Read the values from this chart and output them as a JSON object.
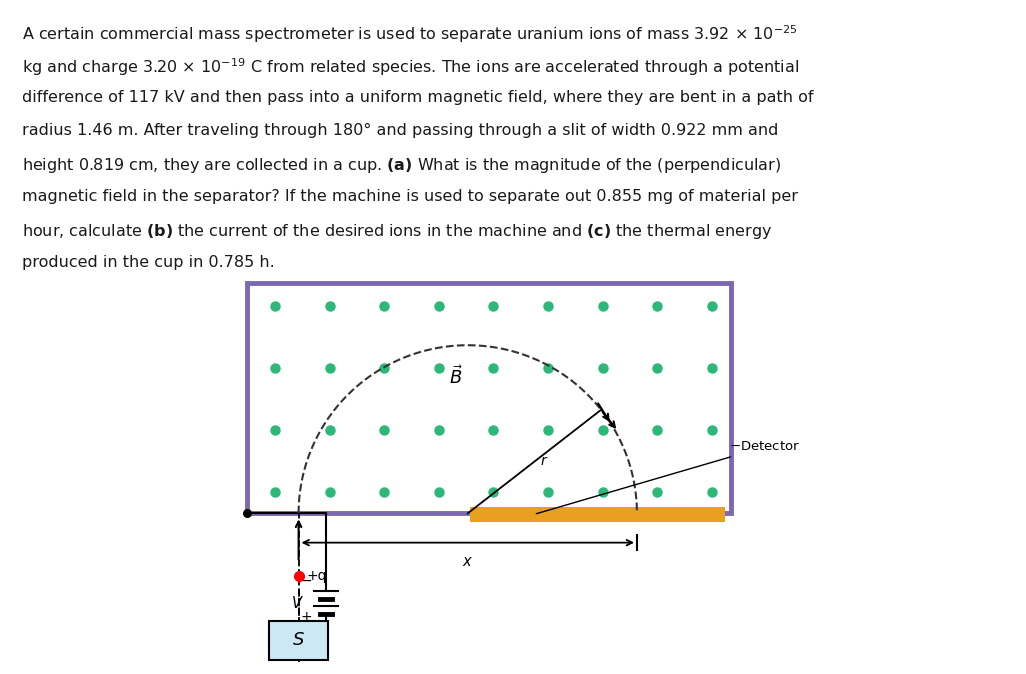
{
  "background_color": "#ede8df",
  "magnetic_region_color": "#ffffff",
  "magnetic_border_color": "#7b68b0",
  "dot_color": "#2db87a",
  "detector_color": "#e8a020",
  "text_color": "#1a1a1a",
  "source_box_color": "#cde8f5",
  "fig_width": 10.26,
  "fig_height": 6.74,
  "lines": [
    "A certain commercial mass spectrometer is used to separate uranium ions of mass 3.92 × 10$^{-25}$",
    "kg and charge 3.20 × 10$^{-19}$ C from related species. The ions are accelerated through a potential",
    "difference of 117 kV and then pass into a uniform magnetic field, where they are bent in a path of",
    "radius 1.46 m. After traveling through 180° and passing through a slit of width 0.922 mm and",
    "height 0.819 cm, they are collected in a cup. $\\mathbf{(a)}$ What is the magnitude of the (perpendicular)",
    "magnetic field in the separator? If the machine is used to separate out 0.855 mg of material per",
    "hour, calculate $\\mathbf{(b)}$ the current of the desired ions in the machine and $\\mathbf{(c)}$ the thermal energy",
    "produced in the cup in 0.785 h."
  ]
}
